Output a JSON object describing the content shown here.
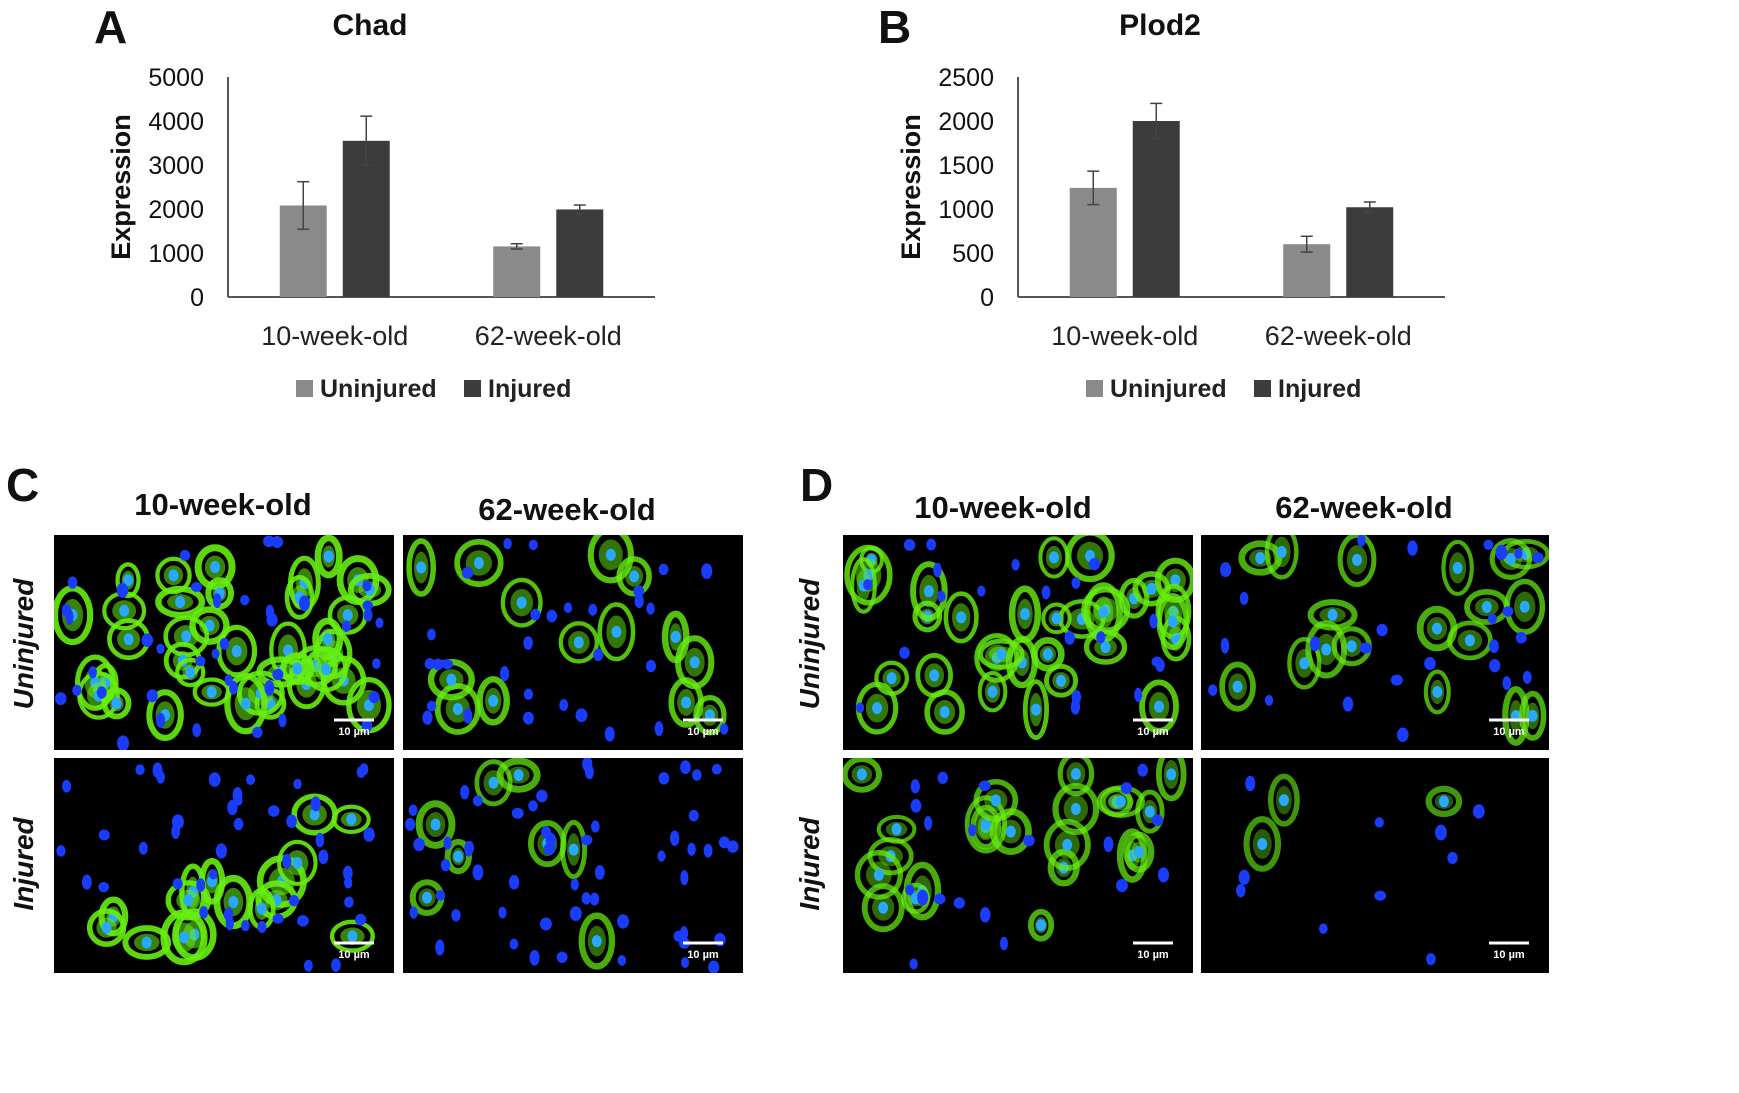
{
  "panels": {
    "a_letter": "A",
    "b_letter": "B",
    "c_letter": "C",
    "d_letter": "D"
  },
  "chart_data": [
    {
      "type": "bar",
      "title": "Chad",
      "ylabel": "Expression",
      "xlabel": "",
      "categories": [
        "10-week-old",
        "62-week-old"
      ],
      "yticks": [
        "0",
        "1000",
        "2000",
        "3000",
        "4000",
        "5000"
      ],
      "ylim": [
        0,
        5000
      ],
      "series": [
        {
          "name": "Uninjured",
          "values": [
            2080,
            1150
          ],
          "errors": [
            540,
            60
          ],
          "color": "#8a8a8a"
        },
        {
          "name": "Injured",
          "values": [
            3550,
            1990
          ],
          "errors": [
            560,
            100
          ],
          "color": "#3c3c3c"
        }
      ],
      "legend": [
        "Uninjured",
        "Injured"
      ]
    },
    {
      "type": "bar",
      "title": "Plod2",
      "ylabel": "Expression",
      "xlabel": "",
      "categories": [
        "10-week-old",
        "62-week-old"
      ],
      "yticks": [
        "0",
        "500",
        "1000",
        "1500",
        "2000",
        "2500"
      ],
      "ylim": [
        0,
        2500
      ],
      "series": [
        {
          "name": "Uninjured",
          "values": [
            1240,
            600
          ],
          "errors": [
            190,
            90
          ],
          "color": "#8a8a8a"
        },
        {
          "name": "Injured",
          "values": [
            2000,
            1020
          ],
          "errors": [
            200,
            60
          ],
          "color": "#3c3c3c"
        }
      ],
      "legend": [
        "Uninjured",
        "Injured"
      ]
    }
  ],
  "micrographs": {
    "c": {
      "col1": "10-week-old",
      "col2": "62-week-old",
      "row1": "Uninjured",
      "row2": "Injured",
      "scalebar": "10 µm"
    },
    "d": {
      "col1": "10-week-old",
      "col2": "62-week-old",
      "row1": "Uninjured",
      "row2": "Injured",
      "scalebar": "10 µm"
    }
  },
  "colors": {
    "uninjured": "#8a8a8a",
    "injured": "#3c3c3c",
    "nucleus": "#1a3cff",
    "stain": "#66ee11",
    "background": "#000000"
  }
}
